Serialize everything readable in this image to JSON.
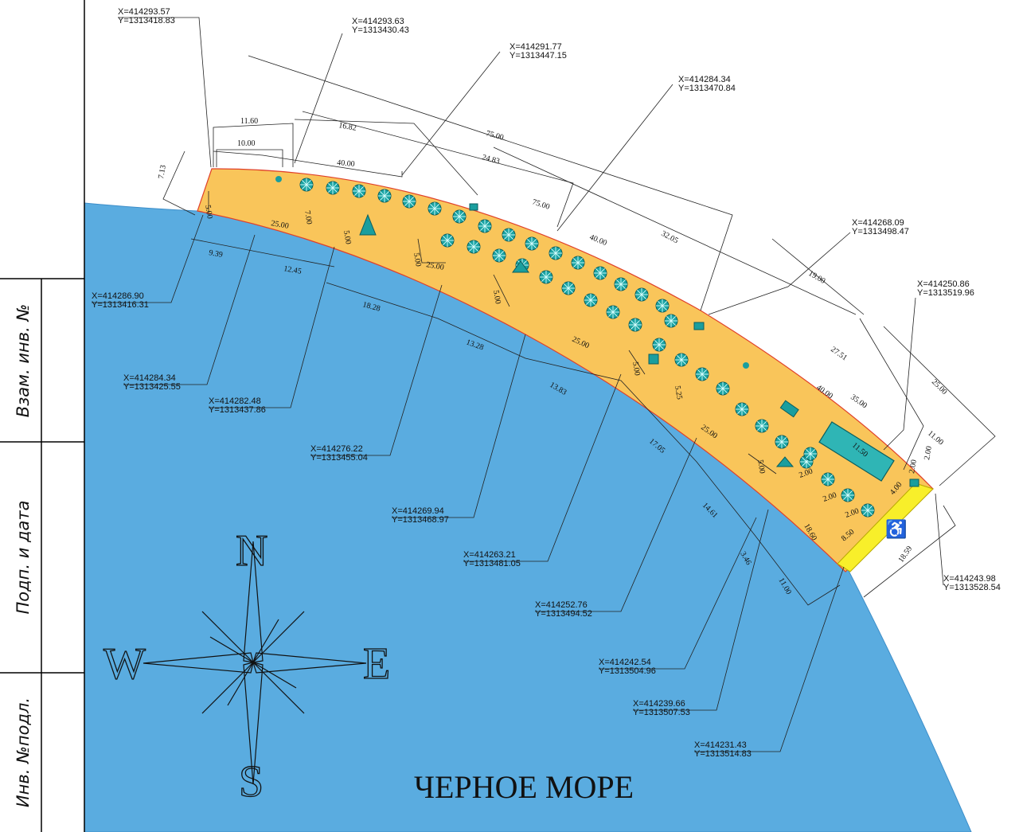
{
  "stamps": [
    "Взам. инв. №",
    "Подп. и дата",
    "Инв. №подл."
  ],
  "sea_label": "ЧЕРНОЕ МОРЕ",
  "compass": {
    "north": "N",
    "south": "S",
    "west": "W",
    "east": "E"
  },
  "colors": {
    "sea": "#5aace0",
    "beach": "#f9c55a",
    "access_zone": "#f8ef2a",
    "equipment": "#1a9e9e"
  },
  "coordinates": [
    {
      "x": "X=414293.57",
      "y": "Y=1313418.83"
    },
    {
      "x": "X=414293.63",
      "y": "Y=1313430.43"
    },
    {
      "x": "X=414291.77",
      "y": "Y=1313447.15"
    },
    {
      "x": "X=414284.34",
      "y": "Y=1313470.84"
    },
    {
      "x": "X=414268.09",
      "y": "Y=1313498.47"
    },
    {
      "x": "X=414250.86",
      "y": "Y=1313519.96"
    },
    {
      "x": "X=414243.98",
      "y": "Y=1313528.54"
    },
    {
      "x": "X=414286.90",
      "y": "Y=1313416.31"
    },
    {
      "x": "X=414284.34",
      "y": "Y=1313425.55"
    },
    {
      "x": "X=414282.48",
      "y": "Y=1313437.86"
    },
    {
      "x": "X=414276.22",
      "y": "Y=1313455.04"
    },
    {
      "x": "X=414269.94",
      "y": "Y=1313468.97"
    },
    {
      "x": "X=414263.21",
      "y": "Y=1313481.05"
    },
    {
      "x": "X=414252.76",
      "y": "Y=1313494.52"
    },
    {
      "x": "X=414242.54",
      "y": "Y=1313504.96"
    },
    {
      "x": "X=414239.66",
      "y": "Y=1313507.53"
    },
    {
      "x": "X=414231.43",
      "y": "Y=1313514.83"
    }
  ],
  "dimensions": [
    "11.60",
    "10.00",
    "16.82",
    "40.00",
    "24.83",
    "75.00",
    "75.00",
    "40.00",
    "32.05",
    "19.00",
    "27.51",
    "40.00",
    "35.00",
    "25.00",
    "11.00",
    "11.50",
    "2.00",
    "7.13",
    "5.00",
    "25.00",
    "7.00",
    "5.00",
    "9.39",
    "12.45",
    "5.00",
    "25.00",
    "5.00",
    "18.28",
    "13.28",
    "25.00",
    "13.83",
    "5.00",
    "5.25",
    "25.00",
    "17.05",
    "5.00",
    "14.61",
    "18.60",
    "8.50",
    "3.46",
    "11.00",
    "18.59",
    "4.00",
    "2.00",
    "2.00",
    "2.00",
    "2.00"
  ],
  "umbrella_count": 44
}
